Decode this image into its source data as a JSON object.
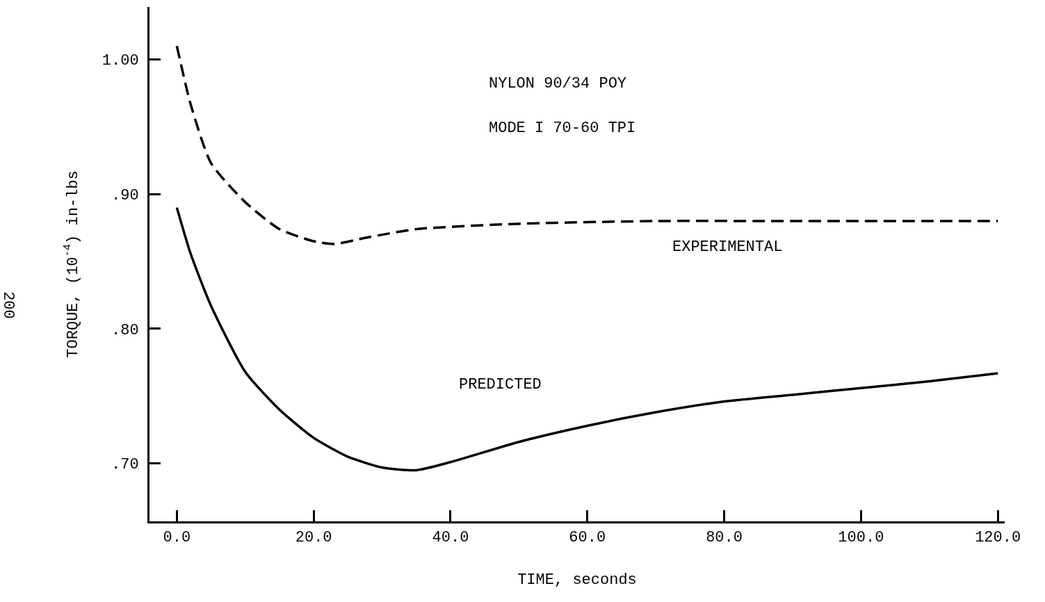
{
  "chart_data": {
    "type": "line",
    "xlabel": "TIME, seconds",
    "ylabel": "TORQUE, (10$^{-4}$) in-lbs",
    "xlim": [
      -4,
      121
    ],
    "ylim": [
      0.657,
      1.039
    ],
    "xticks": [
      {
        "value": 0,
        "label": "0.0"
      },
      {
        "value": 20,
        "label": "20.0"
      },
      {
        "value": 40,
        "label": "40.0"
      },
      {
        "value": 60,
        "label": "60.0"
      },
      {
        "value": 80,
        "label": "80.0"
      },
      {
        "value": 100,
        "label": "100.0"
      },
      {
        "value": 120,
        "label": "120.0"
      }
    ],
    "yticks": [
      {
        "value": 0.7,
        "label": ".70"
      },
      {
        "value": 0.8,
        "label": ".80"
      },
      {
        "value": 0.9,
        "label": ".90"
      },
      {
        "value": 1.0,
        "label": "1.00"
      }
    ],
    "grid": false,
    "legend": false,
    "marker": "none",
    "series": [
      {
        "name": "EXPERIMENTAL",
        "color": "#000000",
        "line_style": "dashed",
        "x": [
          0,
          2,
          5,
          10,
          15,
          20,
          23,
          28,
          35,
          50,
          70,
          90,
          120
        ],
        "values": [
          1.01,
          0.967,
          0.923,
          0.894,
          0.874,
          0.865,
          0.863,
          0.868,
          0.874,
          0.878,
          0.88,
          0.88,
          0.88
        ]
      },
      {
        "name": "PREDICTED",
        "color": "#000000",
        "line_style": "solid",
        "x": [
          0,
          2,
          5,
          10,
          15,
          20,
          25,
          30,
          35,
          40,
          50,
          60,
          70,
          80,
          90,
          100,
          110,
          120
        ],
        "values": [
          0.89,
          0.856,
          0.817,
          0.768,
          0.74,
          0.719,
          0.705,
          0.697,
          0.695,
          0.701,
          0.716,
          0.728,
          0.738,
          0.746,
          0.751,
          0.756,
          0.761,
          0.767
        ]
      }
    ],
    "annotations": [
      "NYLON 90/34 POY",
      "MODE I 70-60 TPI",
      "200"
    ]
  }
}
